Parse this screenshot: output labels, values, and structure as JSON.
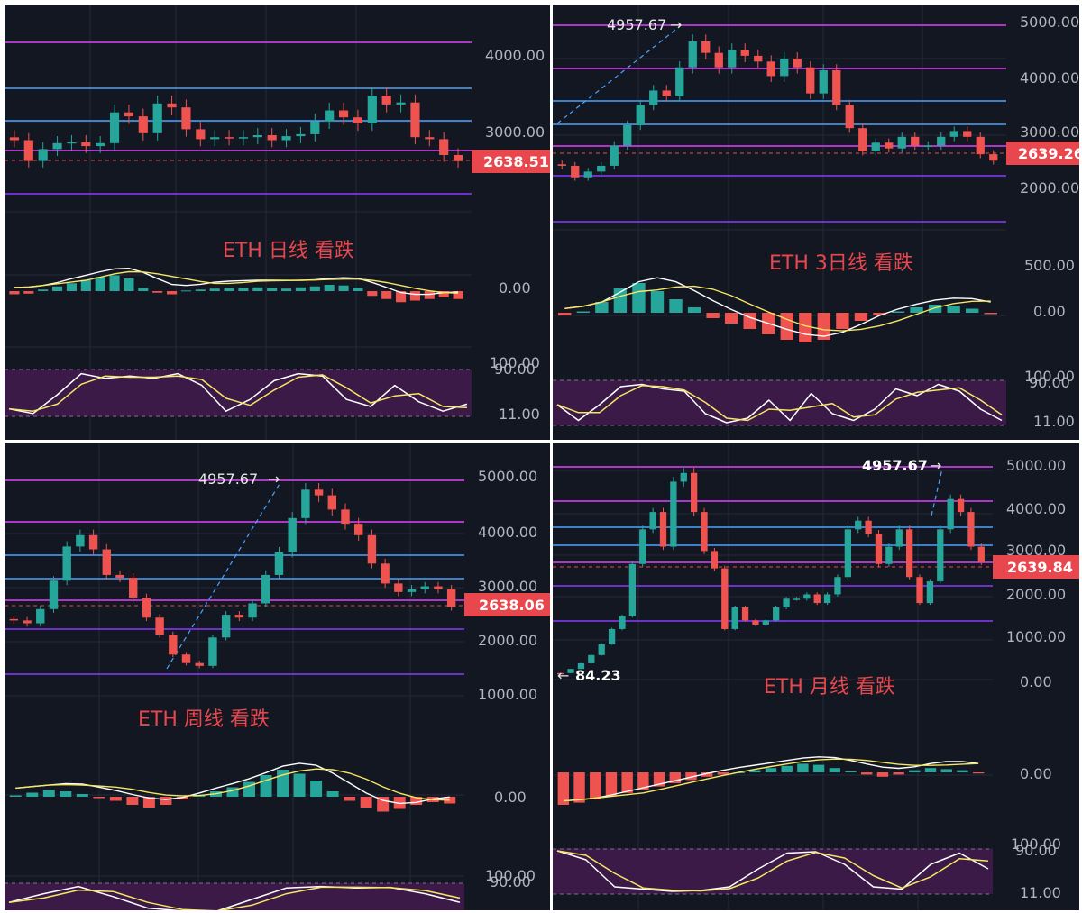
{
  "colors": {
    "background": "#131722",
    "up": "#26a69a",
    "down": "#ef5350",
    "price_tag": "#e8474d",
    "level_magenta": "#e040fb",
    "level_blue": "#4aa3ff",
    "level_violet": "#8a3cff",
    "macd_line": "#ffffff",
    "signal_line": "#f5e663",
    "stoch_band": "#3b1a48",
    "title_red": "#e8474d"
  },
  "chart_data": [
    {
      "type": "candlestick",
      "id": "daily",
      "title": "ETH 日线 看跌",
      "last_price": "2638.51",
      "price_ticks": [
        "4000.00",
        "3000.00"
      ],
      "macd_ticks": [
        "0.00"
      ],
      "stoch_ticks": [
        "100.00",
        "90.00",
        "11.00"
      ],
      "series": [
        {
          "name": "price",
          "values": [
            2850,
            2640,
            2760,
            2820,
            2830,
            2790,
            2820,
            3130,
            3090,
            2920,
            3220,
            3180,
            2960,
            2860,
            2880,
            2870,
            2880,
            2900,
            2850,
            2890,
            2910,
            3040,
            3150,
            3080,
            3020,
            3300,
            3210,
            3230,
            2880,
            2860,
            2700,
            2638
          ]
        },
        {
          "name": "macd_hist",
          "values": [
            -10,
            -8,
            5,
            15,
            25,
            35,
            45,
            50,
            40,
            10,
            -5,
            -10,
            2,
            5,
            8,
            10,
            10,
            12,
            10,
            8,
            12,
            15,
            20,
            18,
            10,
            -15,
            -25,
            -35,
            -30,
            -25,
            -20,
            -25
          ]
        },
        {
          "name": "stoch_k",
          "values": [
            20,
            10,
            50,
            95,
            85,
            90,
            85,
            95,
            70,
            15,
            40,
            80,
            95,
            90,
            40,
            25,
            70,
            35,
            15,
            30
          ]
        }
      ]
    },
    {
      "type": "candlestick",
      "id": "three_day",
      "title": "ETH 3日线 看跌",
      "last_price": "2639.26",
      "peak_label": "4957.67",
      "price_ticks": [
        "5000.00",
        "4000.00",
        "3000.00",
        "2000.00"
      ],
      "macd_ticks": [
        "500.00",
        "0.00"
      ],
      "stoch_ticks": [
        "100.00",
        "90.00",
        "11.00"
      ],
      "series": [
        {
          "name": "price",
          "values": [
            2550,
            2350,
            2450,
            2550,
            2900,
            3250,
            3600,
            3850,
            3750,
            4250,
            4700,
            4500,
            4250,
            4550,
            4450,
            4350,
            4100,
            4400,
            4250,
            3800,
            4200,
            3600,
            3200,
            2800,
            2950,
            2850,
            3050,
            2900,
            2900,
            3050,
            3150,
            3050,
            2750,
            2639
          ]
        },
        {
          "name": "macd_hist",
          "values": [
            -20,
            10,
            80,
            180,
            220,
            160,
            100,
            40,
            -40,
            -80,
            -120,
            -160,
            -200,
            -220,
            -200,
            -120,
            -60,
            -20,
            10,
            40,
            60,
            50,
            30,
            -10
          ]
        },
        {
          "name": "stoch_k",
          "values": [
            50,
            15,
            50,
            90,
            95,
            85,
            80,
            30,
            10,
            20,
            60,
            15,
            75,
            30,
            15,
            40,
            85,
            70,
            95,
            80,
            40,
            15
          ]
        }
      ]
    },
    {
      "type": "candlestick",
      "id": "weekly",
      "title": "ETH 周线 看跌",
      "last_price": "2638.06",
      "peak_label": "4957.67",
      "price_ticks": [
        "5000.00",
        "4000.00",
        "3000.00",
        "2000.00",
        "1000.00"
      ],
      "macd_ticks": [
        "0.00"
      ],
      "stoch_ticks": [
        "100.00",
        "90.00"
      ],
      "series": [
        {
          "name": "price",
          "values": [
            2400,
            2350,
            2600,
            3100,
            3700,
            3900,
            3650,
            3200,
            3150,
            2800,
            2450,
            2150,
            1800,
            1650,
            1600,
            2100,
            2500,
            2450,
            2700,
            3200,
            3600,
            4200,
            4700,
            4600,
            4350,
            4100,
            3900,
            3400,
            3050,
            2900,
            2950,
            3000,
            2950,
            2638
          ]
        },
        {
          "name": "macd_hist",
          "values": [
            10,
            30,
            50,
            40,
            20,
            -10,
            -30,
            -60,
            -80,
            -60,
            -20,
            10,
            40,
            70,
            110,
            160,
            200,
            170,
            120,
            40,
            -30,
            -80,
            -110,
            -90,
            -60,
            -40,
            -50
          ]
        },
        {
          "name": "stoch_k",
          "values": [
            40,
            70,
            95,
            60,
            20,
            10,
            10,
            50,
            90,
            95,
            90,
            92,
            70,
            40
          ]
        }
      ]
    },
    {
      "type": "candlestick",
      "id": "monthly",
      "title": "ETH 月线 看跌",
      "last_price": "2639.84",
      "peak_label": "4957.67",
      "low_label": "84.23",
      "price_ticks": [
        "5000.00",
        "4000.00",
        "3000.00",
        "2000.00",
        "1000.00",
        "0.00"
      ],
      "macd_ticks": [
        "0.00"
      ],
      "stoch_ticks": [
        "100.00",
        "90.00",
        "11.00"
      ],
      "series": [
        {
          "name": "price",
          "values": [
            84,
            180,
            310,
            500,
            750,
            1100,
            1400,
            2600,
            3400,
            3800,
            3000,
            4500,
            4700,
            3800,
            2900,
            2500,
            1100,
            1600,
            1300,
            1200,
            1300,
            1600,
            1800,
            1800,
            1900,
            1700,
            1900,
            2300,
            3400,
            3600,
            3300,
            2600,
            3000,
            3400,
            2300,
            1700,
            2200,
            3400,
            4100,
            3800,
            3000,
            2639
          ]
        },
        {
          "name": "macd_hist",
          "values": [
            -300,
            -280,
            -250,
            -220,
            -190,
            -160,
            -130,
            -100,
            -70,
            -40,
            -20,
            0,
            20,
            40,
            60,
            80,
            70,
            40,
            10,
            -20,
            -40,
            -20,
            20,
            40,
            30,
            20,
            -10
          ]
        },
        {
          "name": "stoch_k",
          "values": [
            100,
            80,
            20,
            15,
            10,
            12,
            20,
            60,
            95,
            98,
            70,
            20,
            15,
            70,
            95,
            60
          ]
        }
      ]
    }
  ]
}
